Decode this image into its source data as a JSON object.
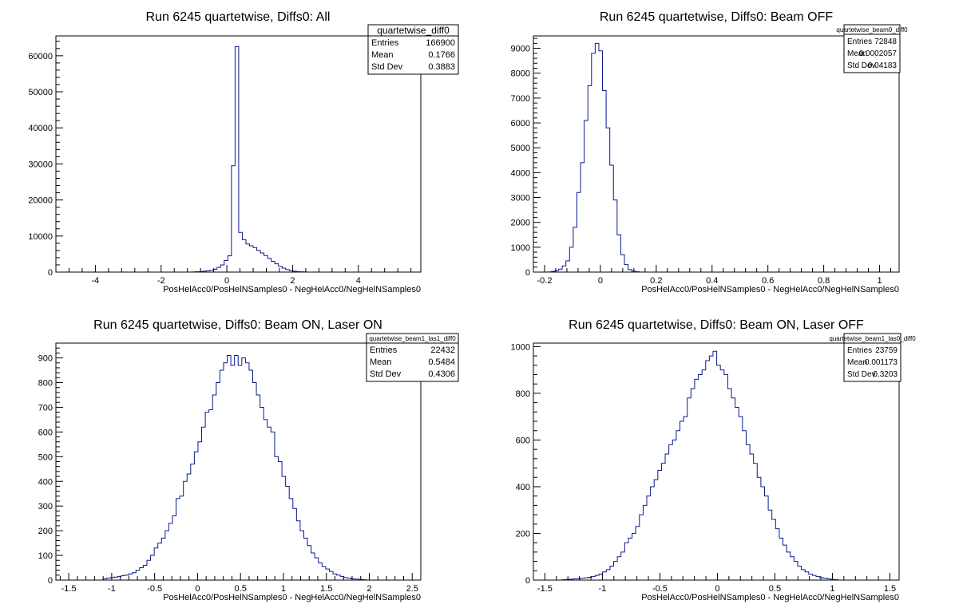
{
  "chart_data": [
    {
      "type": "histogram",
      "title": "Run 6245 quartetwise, Diffs0: All",
      "xlabel": "PosHelAcc0/PosHelNSamples0 - NegHelAcc0/NegHelNSamples0",
      "xlim": [
        -5.2,
        5.9
      ],
      "ylim": [
        0,
        65500
      ],
      "xticks": [
        "-4",
        "-2",
        "0",
        "2",
        "4"
      ],
      "yticks": [
        "0",
        "10000",
        "20000",
        "30000",
        "40000",
        "50000",
        "60000"
      ],
      "stats": {
        "name": "quartetwise_diff0",
        "rows": [
          {
            "label": "Entries",
            "value": "166900"
          },
          {
            "label": "Mean",
            "value": "0.1766"
          },
          {
            "label": "Std Dev",
            "value": "0.3883"
          }
        ]
      },
      "bin_width": 0.11,
      "bin_start": -1.07,
      "counts": [
        50,
        100,
        150,
        250,
        350,
        500,
        800,
        1300,
        2000,
        3200,
        4500,
        29500,
        62500,
        11000,
        9000,
        7800,
        7300,
        6800,
        6000,
        5300,
        4600,
        3800,
        3000,
        2300,
        1600,
        1100,
        700,
        400,
        250,
        150,
        90,
        50
      ]
    },
    {
      "type": "histogram",
      "title": "Run 6245 quartetwise, Diffs0: Beam OFF",
      "xlabel": "PosHelAcc0/PosHelNSamples0 - NegHelAcc0/NegHelNSamples0",
      "xlim": [
        -0.24,
        1.07
      ],
      "ylim": [
        0,
        9500
      ],
      "xticks": [
        "-0.2",
        "0",
        "0.2",
        "0.4",
        "0.6",
        "0.8",
        "1"
      ],
      "yticks": [
        "0",
        "1000",
        "2000",
        "3000",
        "4000",
        "5000",
        "6000",
        "7000",
        "8000",
        "9000"
      ],
      "stats": {
        "name": "quartetwise_beam0_diff0",
        "rows": [
          {
            "label": "Entries",
            "value": "72848"
          },
          {
            "label": "Mean",
            "value": "0.0002057"
          },
          {
            "label": "Std Dev",
            "value": "0.04183"
          }
        ]
      },
      "bin_width": 0.0131,
      "bin_start": -0.189,
      "counts": [
        10,
        30,
        60,
        120,
        250,
        450,
        1000,
        1800,
        3200,
        4400,
        6100,
        7500,
        8800,
        9200,
        8900,
        7300,
        5800,
        4300,
        2900,
        1500,
        700,
        300,
        100,
        40,
        15,
        5
      ]
    },
    {
      "type": "histogram",
      "title": "Run 6245 quartetwise, Diffs0: Beam ON, Laser ON",
      "xlabel": "PosHelAcc0/PosHelNSamples0 - NegHelAcc0/NegHelNSamples0",
      "xlim": [
        -1.65,
        2.6
      ],
      "ylim": [
        0,
        960
      ],
      "xticks": [
        "-1.5",
        "-1",
        "-0.5",
        "0",
        "0.5",
        "1",
        "1.5",
        "2",
        "2.5"
      ],
      "yticks": [
        "0",
        "100",
        "200",
        "300",
        "400",
        "500",
        "600",
        "700",
        "800",
        "900"
      ],
      "stats": {
        "name": "quartetwise_beam1_las1_diff0",
        "rows": [
          {
            "label": "Entries",
            "value": "22432"
          },
          {
            "label": "Mean",
            "value": "0.5484"
          },
          {
            "label": "Std Dev",
            "value": "0.4306"
          }
        ]
      },
      "bin_width": 0.0425,
      "bin_start": -1.1,
      "counts": [
        5,
        8,
        10,
        12,
        15,
        18,
        20,
        25,
        30,
        40,
        50,
        60,
        80,
        100,
        130,
        150,
        170,
        200,
        230,
        260,
        330,
        340,
        400,
        430,
        470,
        520,
        560,
        620,
        680,
        690,
        750,
        800,
        850,
        880,
        910,
        870,
        910,
        870,
        900,
        880,
        850,
        800,
        750,
        700,
        650,
        620,
        600,
        500,
        480,
        420,
        380,
        330,
        290,
        240,
        200,
        170,
        140,
        110,
        90,
        70,
        55,
        45,
        35,
        25,
        20,
        15,
        10,
        8,
        5,
        4,
        3,
        2
      ]
    },
    {
      "type": "histogram",
      "title": "Run 6245 quartetwise, Diffs0: Beam ON, Laser OFF",
      "xlabel": "PosHelAcc0/PosHelNSamples0 - NegHelAcc0/NegHelNSamples0",
      "xlim": [
        -1.6,
        1.58
      ],
      "ylim": [
        0,
        1015
      ],
      "xticks": [
        "-1.5",
        "-1",
        "-0.5",
        "0",
        "0.5",
        "1",
        "1.5"
      ],
      "yticks": [
        "0",
        "200",
        "400",
        "600",
        "800",
        "1000"
      ],
      "stats": {
        "name": "quartetwise_beam1_las0_diff0",
        "rows": [
          {
            "label": "Entries",
            "value": "23759"
          },
          {
            "label": "Mean",
            "value": "0.001173"
          },
          {
            "label": "Std Dev",
            "value": "0.3203"
          }
        ]
      },
      "bin_width": 0.032,
      "bin_start": -1.35,
      "counts": [
        2,
        3,
        4,
        5,
        6,
        8,
        10,
        12,
        15,
        20,
        25,
        35,
        45,
        60,
        80,
        100,
        120,
        160,
        180,
        200,
        230,
        280,
        320,
        360,
        400,
        430,
        470,
        500,
        540,
        580,
        600,
        640,
        680,
        700,
        780,
        820,
        860,
        880,
        900,
        940,
        960,
        980,
        920,
        900,
        880,
        820,
        780,
        740,
        700,
        640,
        580,
        540,
        500,
        440,
        400,
        360,
        300,
        260,
        220,
        180,
        150,
        120,
        100,
        80,
        60,
        45,
        35,
        25,
        20,
        15,
        10,
        8,
        5,
        3,
        2
      ]
    }
  ]
}
